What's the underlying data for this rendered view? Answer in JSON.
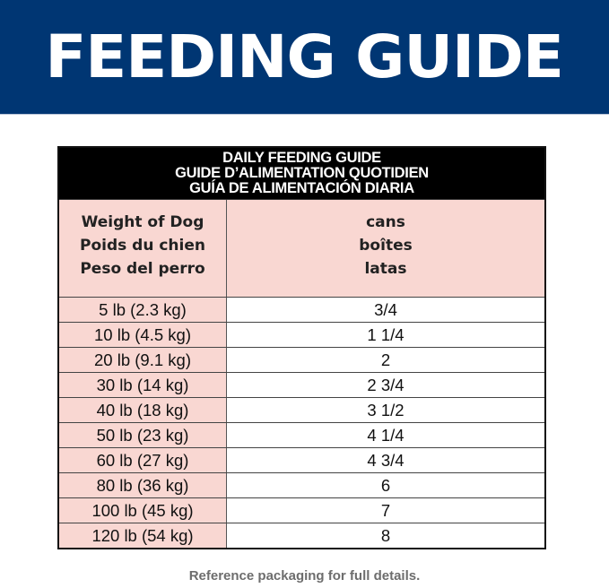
{
  "banner": {
    "title": "FEEDING GUIDE",
    "background": "#003673"
  },
  "table": {
    "title_lines": [
      "DAILY FEEDING GUIDE",
      "GUIDE D’ALIMENTATION QUOTIDIEN",
      "GUÍA DE ALIMENTACIÓN DIARIA"
    ],
    "weight_header": [
      "Weight of Dog",
      "Poids du chien",
      "Peso del perro"
    ],
    "amount_header": [
      "cans",
      "boîtes",
      "latas"
    ],
    "rows": [
      {
        "weight": "5 lb (2.3 kg)",
        "cans": "3/4"
      },
      {
        "weight": "10 lb (4.5 kg)",
        "cans": "1 1/4"
      },
      {
        "weight": "20 lb (9.1 kg)",
        "cans": "2"
      },
      {
        "weight": "30 lb (14 kg)",
        "cans": "2 3/4"
      },
      {
        "weight": "40 lb (18 kg)",
        "cans": "3 1/2"
      },
      {
        "weight": "50 lb (23 kg)",
        "cans": "4 1/4"
      },
      {
        "weight": "60 lb (27 kg)",
        "cans": "4 3/4"
      },
      {
        "weight": "80 lb (36 kg)",
        "cans": "6"
      },
      {
        "weight": "100 lb (45 kg)",
        "cans": "7"
      },
      {
        "weight": "120 lb (54 kg)",
        "cans": "8"
      }
    ],
    "header_color": "#f9d7d2"
  },
  "footer": {
    "note": "Reference packaging for full details."
  }
}
